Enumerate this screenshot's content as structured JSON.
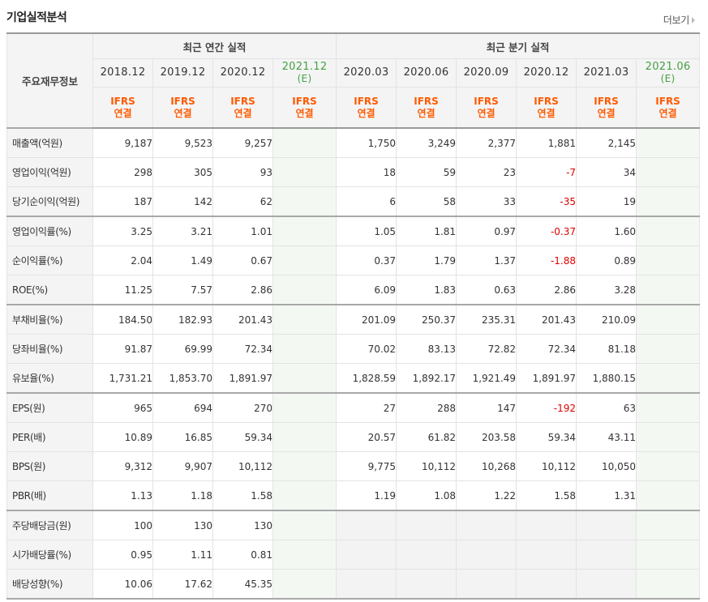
{
  "section_title": "기업실적분석",
  "more_link": "더보기",
  "headers": {
    "row_label": "주요재무정보",
    "annual_group": "최근 연간 실적",
    "quarter_group": "최근 분기 실적",
    "annual_periods": [
      {
        "period": "2018.12",
        "est": "",
        "std": "IFRS",
        "type": "연결"
      },
      {
        "period": "2019.12",
        "est": "",
        "std": "IFRS",
        "type": "연결"
      },
      {
        "period": "2020.12",
        "est": "",
        "std": "IFRS",
        "type": "연결"
      },
      {
        "period": "2021.12",
        "est": "(E)",
        "std": "IFRS",
        "type": "연결"
      }
    ],
    "quarter_periods": [
      {
        "period": "2020.03",
        "est": "",
        "std": "IFRS",
        "type": "연결"
      },
      {
        "period": "2020.06",
        "est": "",
        "std": "IFRS",
        "type": "연결"
      },
      {
        "period": "2020.09",
        "est": "",
        "std": "IFRS",
        "type": "연결"
      },
      {
        "period": "2020.12",
        "est": "",
        "std": "IFRS",
        "type": "연결"
      },
      {
        "period": "2021.03",
        "est": "",
        "std": "IFRS",
        "type": "연결"
      },
      {
        "period": "2021.06",
        "est": "(E)",
        "std": "IFRS",
        "type": "연결"
      }
    ]
  },
  "colors": {
    "accent_orange": "#ff5a00",
    "estimate_green": "#44a044",
    "negative_red": "#dd0000"
  },
  "rows": [
    {
      "label": "매출액(억원)",
      "group_start": true,
      "annual": [
        "9,187",
        "9,523",
        "9,257",
        ""
      ],
      "quarter": [
        "1,750",
        "3,249",
        "2,377",
        "1,881",
        "2,145",
        ""
      ]
    },
    {
      "label": "영업이익(억원)",
      "annual": [
        "298",
        "305",
        "93",
        ""
      ],
      "quarter": [
        "18",
        "59",
        "23",
        "-7",
        "34",
        ""
      ]
    },
    {
      "label": "당기순이익(억원)",
      "annual": [
        "187",
        "142",
        "62",
        ""
      ],
      "quarter": [
        "6",
        "58",
        "33",
        "-35",
        "19",
        ""
      ]
    },
    {
      "label": "영업이익률(%)",
      "group_start": true,
      "annual": [
        "3.25",
        "3.21",
        "1.01",
        ""
      ],
      "quarter": [
        "1.05",
        "1.81",
        "0.97",
        "-0.37",
        "1.60",
        ""
      ]
    },
    {
      "label": "순이익률(%)",
      "annual": [
        "2.04",
        "1.49",
        "0.67",
        ""
      ],
      "quarter": [
        "0.37",
        "1.79",
        "1.37",
        "-1.88",
        "0.89",
        ""
      ]
    },
    {
      "label": "ROE(%)",
      "annual": [
        "11.25",
        "7.57",
        "2.86",
        ""
      ],
      "quarter": [
        "6.09",
        "1.83",
        "0.63",
        "2.86",
        "3.28",
        ""
      ]
    },
    {
      "label": "부채비율(%)",
      "group_start": true,
      "annual": [
        "184.50",
        "182.93",
        "201.43",
        ""
      ],
      "quarter": [
        "201.09",
        "250.37",
        "235.31",
        "201.43",
        "210.09",
        ""
      ]
    },
    {
      "label": "당좌비율(%)",
      "annual": [
        "91.87",
        "69.99",
        "72.34",
        ""
      ],
      "quarter": [
        "70.02",
        "83.13",
        "72.82",
        "72.34",
        "81.18",
        ""
      ]
    },
    {
      "label": "유보율(%)",
      "annual": [
        "1,731.21",
        "1,853.70",
        "1,891.97",
        ""
      ],
      "quarter": [
        "1,828.59",
        "1,892.17",
        "1,921.49",
        "1,891.97",
        "1,880.15",
        ""
      ]
    },
    {
      "label": "EPS(원)",
      "group_start": true,
      "annual": [
        "965",
        "694",
        "270",
        ""
      ],
      "quarter": [
        "27",
        "288",
        "147",
        "-192",
        "63",
        ""
      ]
    },
    {
      "label": "PER(배)",
      "annual": [
        "10.89",
        "16.85",
        "59.34",
        ""
      ],
      "quarter": [
        "20.57",
        "61.82",
        "203.58",
        "59.34",
        "43.11",
        ""
      ]
    },
    {
      "label": "BPS(원)",
      "annual": [
        "9,312",
        "9,907",
        "10,112",
        ""
      ],
      "quarter": [
        "9,775",
        "10,112",
        "10,268",
        "10,112",
        "10,050",
        ""
      ]
    },
    {
      "label": "PBR(배)",
      "annual": [
        "1.13",
        "1.18",
        "1.58",
        ""
      ],
      "quarter": [
        "1.19",
        "1.08",
        "1.22",
        "1.58",
        "1.31",
        ""
      ]
    },
    {
      "label": "주당배당금(원)",
      "group_start": true,
      "annual": [
        "100",
        "130",
        "130",
        ""
      ],
      "quarter": [
        "",
        "",
        "",
        "",
        "",
        ""
      ],
      "quarter_blank": true
    },
    {
      "label": "시가배당률(%)",
      "annual": [
        "0.95",
        "1.11",
        "0.81",
        ""
      ],
      "quarter": [
        "",
        "",
        "",
        "",
        "",
        ""
      ],
      "quarter_blank": true
    },
    {
      "label": "배당성향(%)",
      "last": true,
      "annual": [
        "10.06",
        "17.62",
        "45.35",
        ""
      ],
      "quarter": [
        "",
        "",
        "",
        "",
        "",
        ""
      ],
      "quarter_blank": true
    }
  ]
}
